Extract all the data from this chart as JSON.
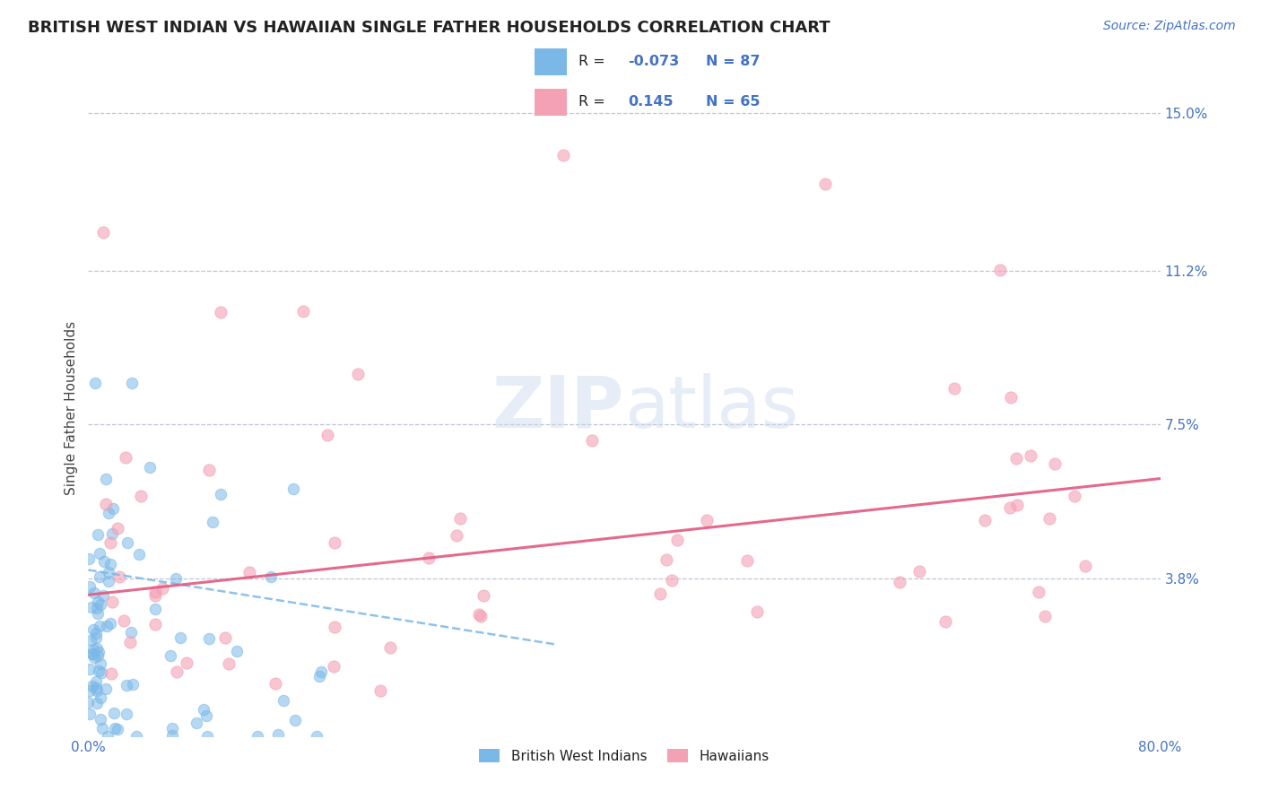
{
  "title": "BRITISH WEST INDIAN VS HAWAIIAN SINGLE FATHER HOUSEHOLDS CORRELATION CHART",
  "source": "Source: ZipAtlas.com",
  "ylabel": "Single Father Households",
  "xlim": [
    0.0,
    0.8
  ],
  "ylim": [
    0.0,
    0.158
  ],
  "yticks": [
    0.038,
    0.075,
    0.112,
    0.15
  ],
  "ytick_labels": [
    "3.8%",
    "7.5%",
    "11.2%",
    "15.0%"
  ],
  "xticks": [
    0.0,
    0.8
  ],
  "xtick_labels": [
    "0.0%",
    "80.0%"
  ],
  "series1_name": "British West Indians",
  "series1_color": "#7ab8e8",
  "series1_R": -0.073,
  "series1_N": 87,
  "series2_name": "Hawaiians",
  "series2_color": "#f4a0b5",
  "series2_R": 0.145,
  "series2_N": 65,
  "background_color": "#ffffff",
  "grid_color": "#b0b8c8",
  "title_color": "#222222",
  "axis_label_color": "#444444",
  "tick_color": "#4472c4",
  "legend_R_color": "#4472c4",
  "watermark": "ZIPatlas",
  "title_fontsize": 13,
  "source_fontsize": 10,
  "trend1_x0": 0.0,
  "trend1_y0": 0.04,
  "trend1_x1": 0.35,
  "trend1_y1": 0.022,
  "trend2_x0": 0.0,
  "trend2_y0": 0.034,
  "trend2_x1": 0.8,
  "trend2_y1": 0.062
}
